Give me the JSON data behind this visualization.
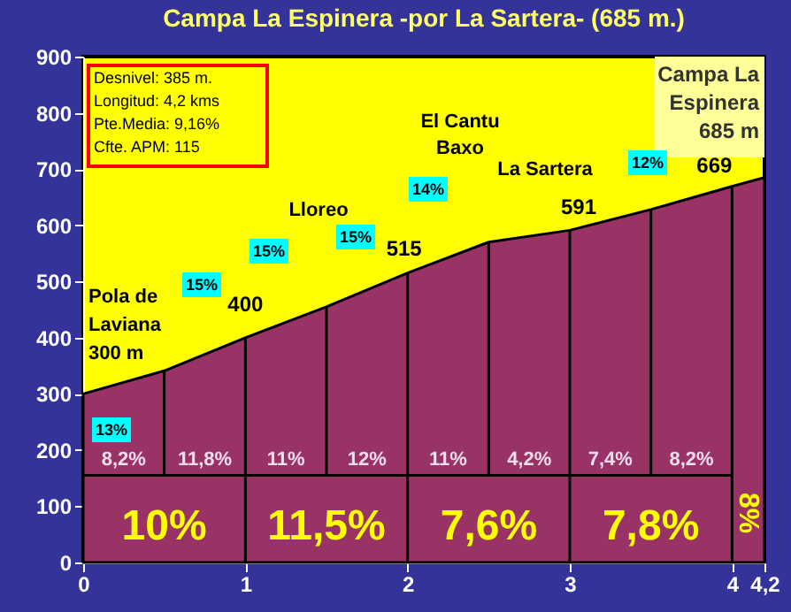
{
  "chart_data": {
    "type": "area",
    "title": "Campa La Espinera -por La Sartera- (685 m.)",
    "x": [
      0,
      0.5,
      1,
      1.5,
      2,
      2.5,
      3,
      3.5,
      4,
      4.2
    ],
    "series": [
      {
        "color": "#993366",
        "values": [
          300,
          341,
          400,
          455,
          515,
          570,
          591,
          628,
          669,
          685
        ]
      }
    ],
    "xlim": [
      0,
      4.2
    ],
    "xticks": [
      0,
      1,
      2,
      3,
      4,
      {
        "value": 4.2,
        "label": "4,2"
      }
    ],
    "ylim": [
      0,
      900
    ],
    "yticks": [
      0,
      100,
      200,
      300,
      400,
      500,
      600,
      700,
      800,
      900
    ],
    "grid": false,
    "ref_lines": [
      {
        "axis": "x",
        "value": 0.5,
        "color": "#000000"
      },
      {
        "axis": "x",
        "value": 1,
        "color": "#000000"
      },
      {
        "axis": "x",
        "value": 1.5,
        "color": "#000000"
      },
      {
        "axis": "x",
        "value": 2,
        "color": "#000000"
      },
      {
        "axis": "x",
        "value": 2.5,
        "color": "#000000"
      },
      {
        "axis": "x",
        "value": 3,
        "color": "#000000"
      },
      {
        "axis": "x",
        "value": 3.5,
        "color": "#000000"
      },
      {
        "axis": "x",
        "value": 4,
        "color": "#000000"
      },
      {
        "axis": "y",
        "value": 155,
        "color": "#000000"
      }
    ],
    "annotations": [
      "Desnivel: 385 m.\nLongitud: 4,2 kms\nPte.Media: 9,16%\nCfte. APM: 115",
      "Campa La\nEspinera\n685 m",
      "Pola de\nLaviana\n300 m",
      {
        "text": "400",
        "x": 1,
        "y": 400
      },
      "Lloreo",
      {
        "text": "515",
        "x": 2,
        "y": 515
      },
      "El Cantu\nBaxo",
      "La Sartera",
      {
        "text": "591",
        "x": 3,
        "y": 591
      },
      {
        "text": "669",
        "x": 4,
        "y": 669
      },
      "13%",
      "15%",
      "15%",
      "15%",
      "14%",
      "12%",
      "8,2%",
      "11,8%",
      "11%",
      "12%",
      "11%",
      "4,2%",
      "7,4%",
      "8,2%",
      "10%",
      "11,5%",
      "7,6%",
      "7,8%",
      "8%"
    ]
  }
}
